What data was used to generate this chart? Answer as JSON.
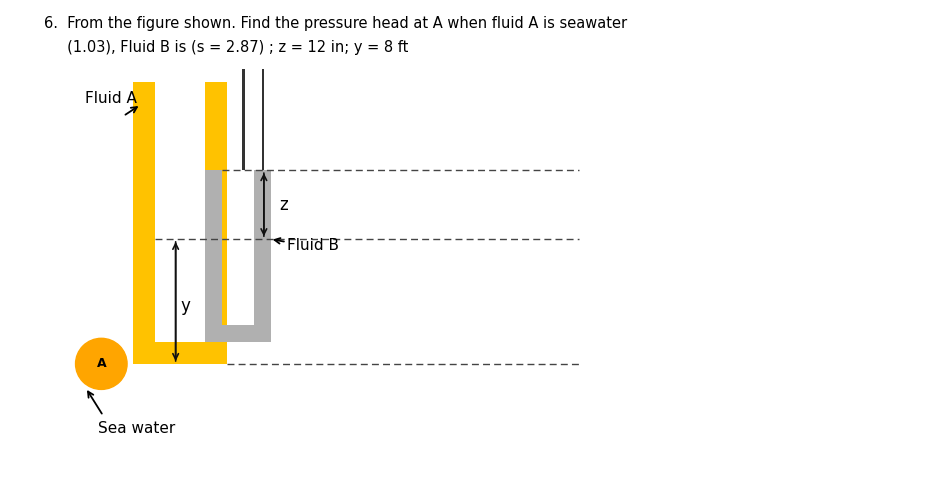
{
  "title_line1": "6.  From the figure shown. Find the pressure head at A when fluid A is seawater",
  "title_line2": "     (1.03), Fluid B is (s = 2.87) ; z = 12 in; y = 8 ft",
  "bg_color": "#ffffff",
  "yellow_color": "#FFC200",
  "gray_color": "#B0B0B0",
  "orange_circle_color": "#FFA500",
  "dark_line_color": "#333333",
  "label_fluid_a": "Fluid A",
  "label_fluid_b": "Fluid B",
  "label_z": "z",
  "label_y": "y",
  "label_a": "A",
  "label_seawater": "Sea water",
  "dashed_color": "#444444",
  "arrow_color": "#111111"
}
